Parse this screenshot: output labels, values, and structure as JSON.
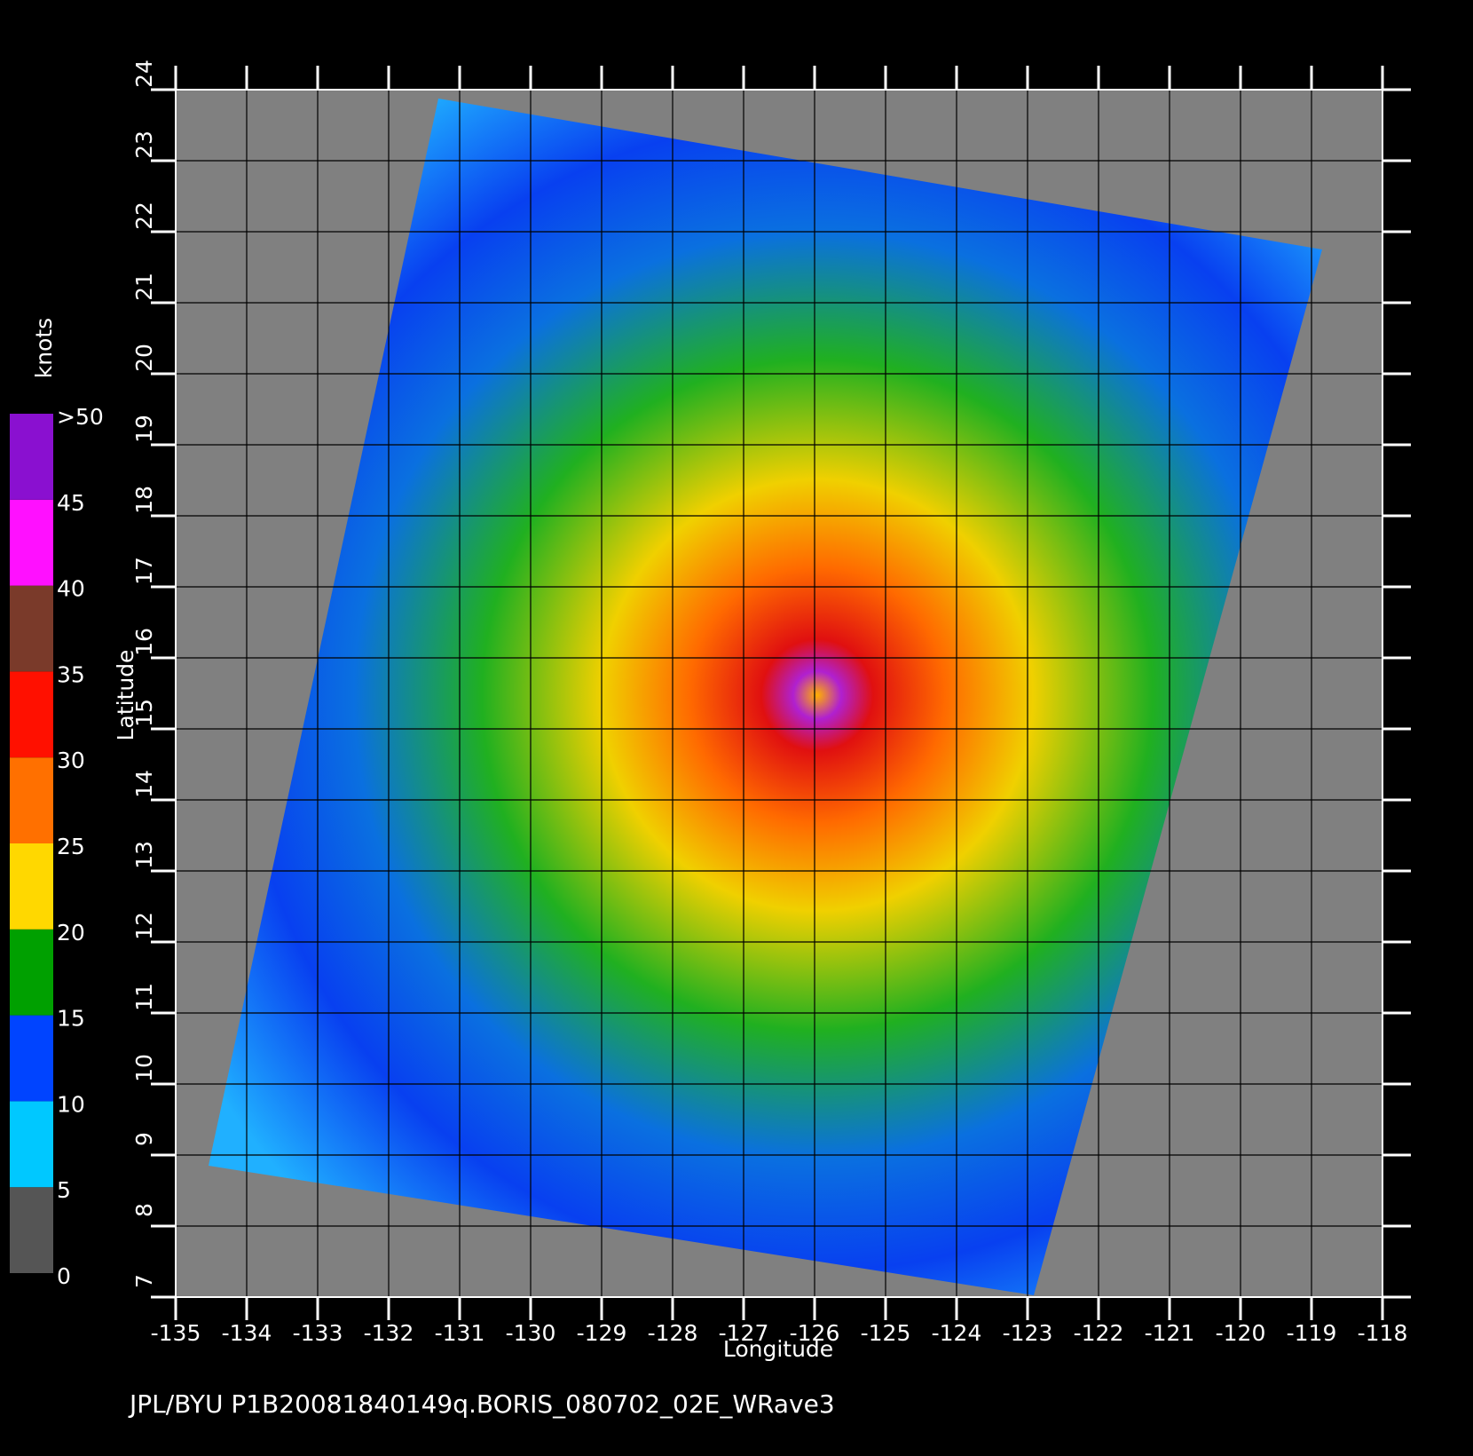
{
  "map": {
    "x_label": "Longitude",
    "y_label": "Latitude",
    "xlim": [
      -135,
      -118
    ],
    "ylim": [
      7,
      24
    ],
    "xticks": [
      -135,
      -134,
      -133,
      -132,
      -131,
      -130,
      -129,
      -128,
      -127,
      -126,
      -125,
      -124,
      -123,
      -122,
      -121,
      -120,
      -119,
      -118
    ],
    "yticks": [
      7,
      8,
      9,
      10,
      11,
      12,
      13,
      14,
      15,
      16,
      17,
      18,
      19,
      20,
      21,
      22,
      23,
      24
    ],
    "grid": true,
    "background": "#808080",
    "colorbar": {
      "unit": "knots",
      "ticks": [
        0,
        5,
        10,
        15,
        20,
        25,
        30,
        35,
        40,
        45,
        {
          "value": 50,
          "label": ">50"
        }
      ],
      "colors": [
        "#555555",
        "#00c8ff",
        "#0044ff",
        "#00a000",
        "#ffd800",
        "#ff7000",
        "#ff1000",
        "#7a3a2a",
        "#ff10ff",
        "#8a10d0"
      ]
    }
  },
  "footer": "JPL/BYU  P1B20081840149q.BORIS_080702_02E_WRave3"
}
